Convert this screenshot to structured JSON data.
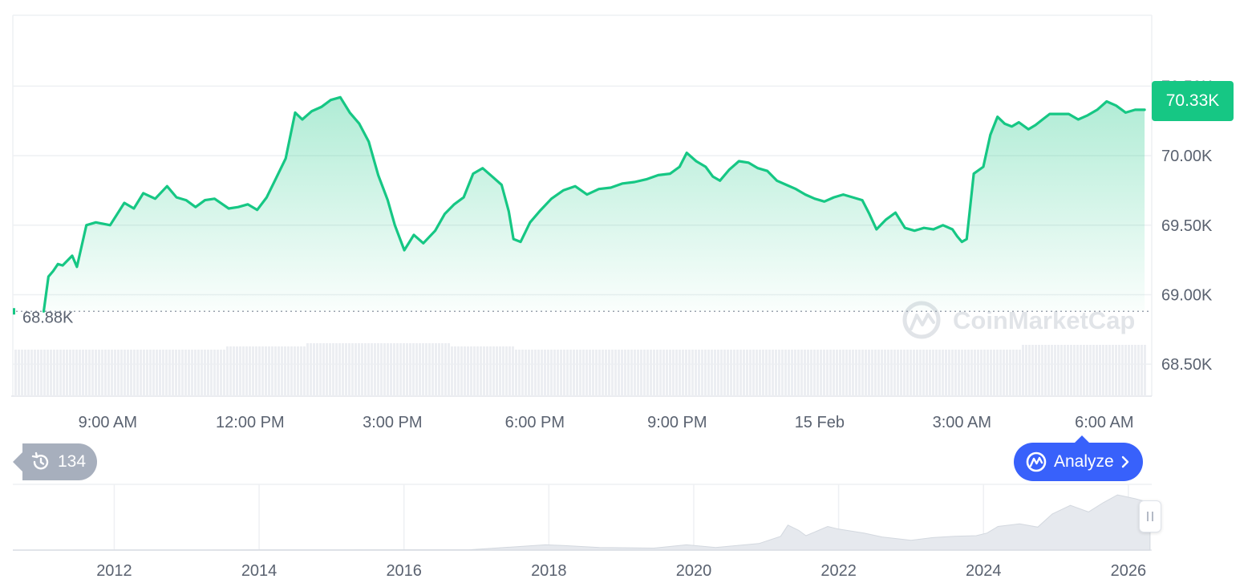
{
  "chart_data": {
    "type": "area",
    "series_color": "#16c784",
    "y_ticks": [
      "70.50K",
      "70.00K",
      "69.50K",
      "69.00K",
      "68.50K"
    ],
    "y_tick_values": [
      70500,
      70000,
      69500,
      69000,
      68500
    ],
    "ylim": [
      68270,
      71010
    ],
    "x_labels": [
      "9:00 AM",
      "12:00 PM",
      "3:00 PM",
      "6:00 PM",
      "9:00 PM",
      "15 Feb",
      "3:00 AM",
      "6:00 AM"
    ],
    "x_label_hours": [
      9,
      12,
      15,
      18,
      21,
      24,
      27,
      30
    ],
    "x_range_hours": [
      7,
      31
    ],
    "open_price": 68880,
    "open_price_label": "68.88K",
    "current_price": 70330,
    "current_price_label": "70.33K",
    "grid": true,
    "volume_shown": true,
    "points": [
      [
        7.65,
        68880
      ],
      [
        7.75,
        69130
      ],
      [
        7.85,
        69170
      ],
      [
        7.95,
        69220
      ],
      [
        8.05,
        69210
      ],
      [
        8.25,
        69280
      ],
      [
        8.35,
        69200
      ],
      [
        8.55,
        69500
      ],
      [
        8.75,
        69520
      ],
      [
        9.05,
        69500
      ],
      [
        9.35,
        69660
      ],
      [
        9.55,
        69620
      ],
      [
        9.75,
        69730
      ],
      [
        10.0,
        69690
      ],
      [
        10.25,
        69780
      ],
      [
        10.45,
        69700
      ],
      [
        10.65,
        69680
      ],
      [
        10.85,
        69630
      ],
      [
        11.05,
        69680
      ],
      [
        11.25,
        69690
      ],
      [
        11.55,
        69620
      ],
      [
        11.75,
        69630
      ],
      [
        11.95,
        69650
      ],
      [
        12.15,
        69610
      ],
      [
        12.35,
        69700
      ],
      [
        12.55,
        69840
      ],
      [
        12.75,
        69980
      ],
      [
        12.95,
        70310
      ],
      [
        13.1,
        70260
      ],
      [
        13.3,
        70320
      ],
      [
        13.5,
        70350
      ],
      [
        13.7,
        70400
      ],
      [
        13.9,
        70420
      ],
      [
        14.1,
        70310
      ],
      [
        14.3,
        70230
      ],
      [
        14.5,
        70100
      ],
      [
        14.7,
        69860
      ],
      [
        14.9,
        69680
      ],
      [
        15.05,
        69500
      ],
      [
        15.25,
        69320
      ],
      [
        15.45,
        69430
      ],
      [
        15.65,
        69370
      ],
      [
        15.9,
        69460
      ],
      [
        16.1,
        69580
      ],
      [
        16.3,
        69650
      ],
      [
        16.5,
        69700
      ],
      [
        16.7,
        69870
      ],
      [
        16.9,
        69910
      ],
      [
        17.1,
        69850
      ],
      [
        17.3,
        69790
      ],
      [
        17.45,
        69600
      ],
      [
        17.55,
        69400
      ],
      [
        17.7,
        69380
      ],
      [
        17.9,
        69520
      ],
      [
        18.1,
        69600
      ],
      [
        18.35,
        69690
      ],
      [
        18.6,
        69750
      ],
      [
        18.85,
        69780
      ],
      [
        19.1,
        69720
      ],
      [
        19.35,
        69760
      ],
      [
        19.6,
        69770
      ],
      [
        19.85,
        69800
      ],
      [
        20.1,
        69810
      ],
      [
        20.35,
        69830
      ],
      [
        20.6,
        69860
      ],
      [
        20.85,
        69870
      ],
      [
        21.05,
        69920
      ],
      [
        21.2,
        70020
      ],
      [
        21.4,
        69960
      ],
      [
        21.6,
        69920
      ],
      [
        21.75,
        69850
      ],
      [
        21.9,
        69820
      ],
      [
        22.1,
        69900
      ],
      [
        22.3,
        69960
      ],
      [
        22.5,
        69950
      ],
      [
        22.7,
        69910
      ],
      [
        22.9,
        69890
      ],
      [
        23.1,
        69820
      ],
      [
        23.3,
        69790
      ],
      [
        23.5,
        69760
      ],
      [
        23.7,
        69720
      ],
      [
        23.9,
        69690
      ],
      [
        24.1,
        69670
      ],
      [
        24.3,
        69700
      ],
      [
        24.5,
        69720
      ],
      [
        24.7,
        69700
      ],
      [
        24.9,
        69680
      ],
      [
        25.05,
        69580
      ],
      [
        25.2,
        69470
      ],
      [
        25.4,
        69540
      ],
      [
        25.6,
        69590
      ],
      [
        25.8,
        69480
      ],
      [
        26.0,
        69460
      ],
      [
        26.2,
        69480
      ],
      [
        26.4,
        69470
      ],
      [
        26.6,
        69500
      ],
      [
        26.8,
        69470
      ],
      [
        26.9,
        69420
      ],
      [
        27.0,
        69380
      ],
      [
        27.1,
        69400
      ],
      [
        27.25,
        69870
      ],
      [
        27.45,
        69920
      ],
      [
        27.6,
        70150
      ],
      [
        27.75,
        70280
      ],
      [
        27.9,
        70230
      ],
      [
        28.05,
        70210
      ],
      [
        28.2,
        70240
      ],
      [
        28.4,
        70190
      ],
      [
        28.55,
        70220
      ],
      [
        28.7,
        70260
      ],
      [
        28.85,
        70300
      ],
      [
        29.05,
        70300
      ],
      [
        29.25,
        70300
      ],
      [
        29.45,
        70260
      ],
      [
        29.65,
        70290
      ],
      [
        29.85,
        70330
      ],
      [
        30.05,
        70390
      ],
      [
        30.25,
        70360
      ],
      [
        30.45,
        70310
      ],
      [
        30.65,
        70330
      ],
      [
        30.85,
        70330
      ]
    ]
  },
  "navigator": {
    "year_labels": [
      "2012",
      "2014",
      "2016",
      "2018",
      "2020",
      "2022",
      "2024",
      "2026"
    ],
    "years": [
      2012,
      2014,
      2016,
      2018,
      2020,
      2022,
      2024,
      2026
    ],
    "year_range": [
      2010.6,
      2026.5
    ],
    "history": [
      [
        2010.6,
        0
      ],
      [
        2013.9,
        0.3
      ],
      [
        2016.9,
        0.5
      ],
      [
        2017.95,
        8
      ],
      [
        2018.2,
        7
      ],
      [
        2018.7,
        4
      ],
      [
        2019.45,
        3
      ],
      [
        2019.9,
        8
      ],
      [
        2020.3,
        4
      ],
      [
        2020.9,
        10
      ],
      [
        2021.2,
        21
      ],
      [
        2021.3,
        38
      ],
      [
        2021.45,
        30
      ],
      [
        2021.55,
        22
      ],
      [
        2021.85,
        36
      ],
      [
        2022.0,
        32
      ],
      [
        2022.35,
        26
      ],
      [
        2022.6,
        20
      ],
      [
        2023.0,
        15
      ],
      [
        2023.3,
        19
      ],
      [
        2023.6,
        21
      ],
      [
        2023.9,
        22
      ],
      [
        2024.05,
        26
      ],
      [
        2024.2,
        36
      ],
      [
        2024.5,
        40
      ],
      [
        2024.75,
        35
      ],
      [
        2024.95,
        55
      ],
      [
        2025.2,
        68
      ],
      [
        2025.45,
        58
      ],
      [
        2025.65,
        72
      ],
      [
        2025.85,
        84
      ],
      [
        2026.1,
        78
      ],
      [
        2026.3,
        72
      ]
    ]
  },
  "history_count": "134",
  "analyze_label": "Analyze",
  "watermark": "CoinMarketCap",
  "icons": {
    "history": "history-clock-icon",
    "analyze": "coinmarketcap-logo-icon",
    "chevron": "chevron-right-icon",
    "watermark": "coinmarketcap-logo-icon",
    "scroll": "grip-handle-icon"
  }
}
